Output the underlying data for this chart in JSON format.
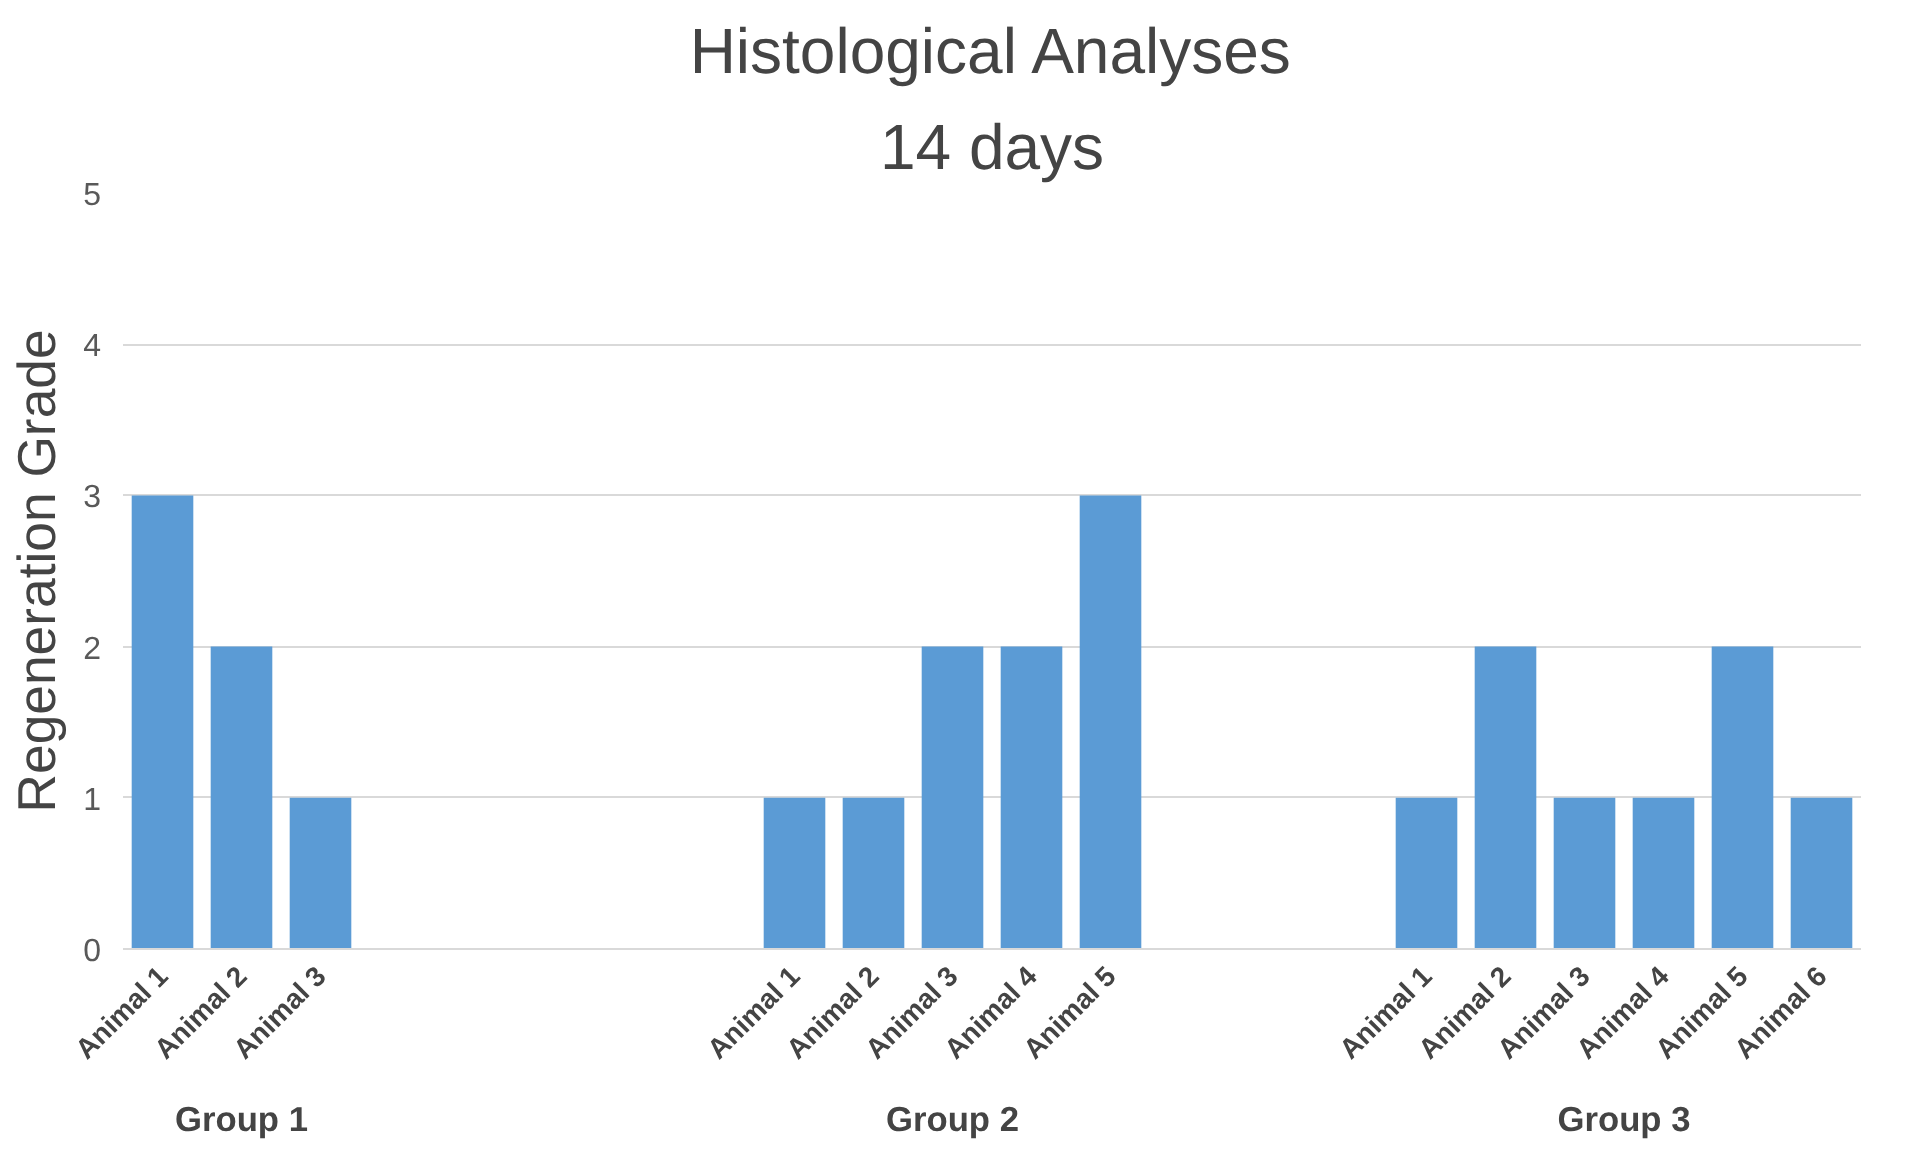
{
  "chart_data": {
    "type": "bar",
    "title": "Histological Analyses",
    "subtitle": "14 days",
    "ylabel": "Regeneration Grade",
    "categories": [
      "Animal 1",
      "Animal 2",
      "Animal 3",
      null,
      null,
      null,
      null,
      null,
      "Animal 1",
      "Animal 2",
      "Animal 3",
      "Animal 4",
      "Animal 5",
      null,
      null,
      null,
      "Animal 1",
      "Animal 2",
      "Animal 3",
      "Animal 4",
      "Animal 5",
      "Animal 6"
    ],
    "values": [
      3,
      2,
      1,
      null,
      null,
      null,
      null,
      null,
      1,
      1,
      2,
      2,
      3,
      null,
      null,
      null,
      1,
      2,
      1,
      1,
      2,
      1
    ],
    "color": "#5b9bd5",
    "ylim": [
      0,
      5
    ],
    "yticks": [
      0,
      1,
      2,
      3,
      4,
      5
    ],
    "grid": "y",
    "annotations": [
      "Group 1",
      "Group 2",
      "Group 3"
    ]
  }
}
